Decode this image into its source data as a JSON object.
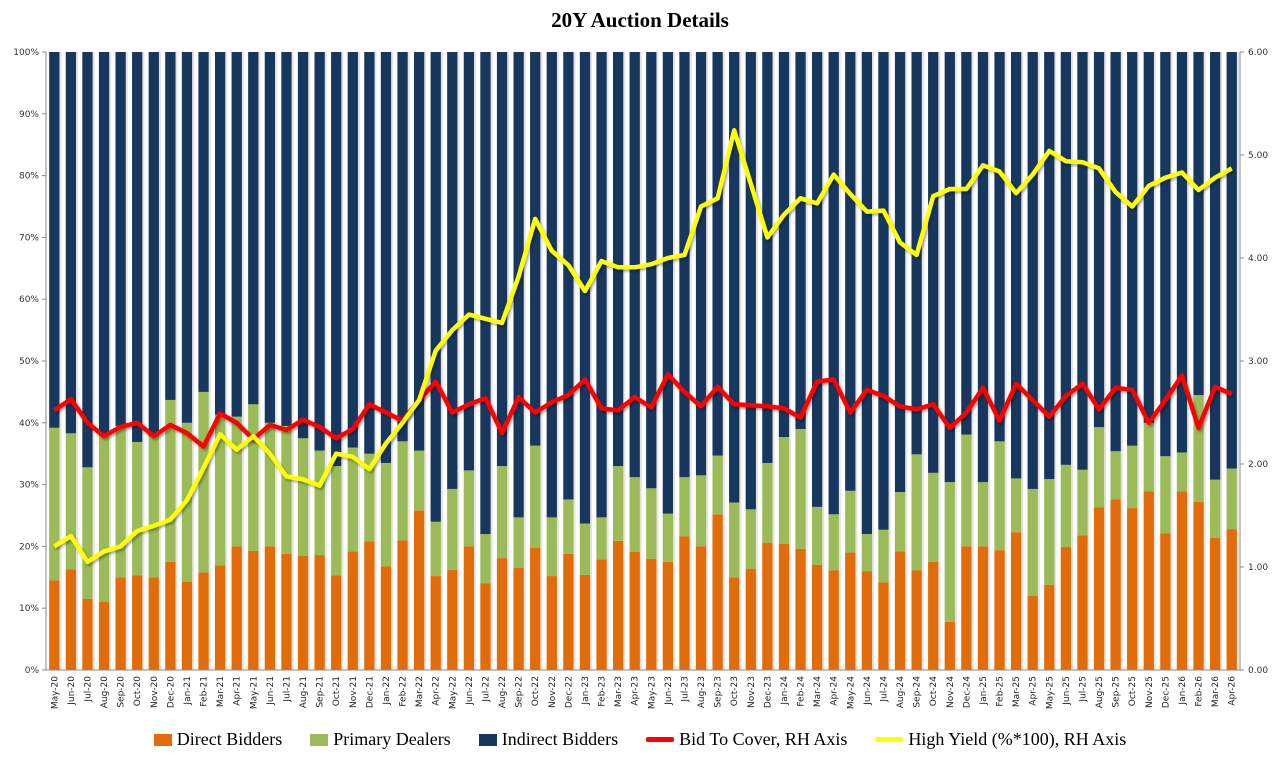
{
  "chart_data": {
    "type": "bar",
    "stacked": true,
    "title": "20Y Auction Details",
    "xlabel": "",
    "ylabel": "",
    "ylim": [
      0,
      100
    ],
    "y2lim": [
      0,
      6
    ],
    "left_ticks": [
      "0%",
      "10%",
      "20%",
      "30%",
      "40%",
      "50%",
      "60%",
      "70%",
      "80%",
      "90%",
      "100%"
    ],
    "right_ticks": [
      "0.00",
      "1.00",
      "2.00",
      "3.00",
      "4.00",
      "5.00",
      "6.00"
    ],
    "legend_position": "bottom",
    "categories": [
      "May-20",
      "Jun-20",
      "Jul-20",
      "Aug-20",
      "Sep-20",
      "Oct-20",
      "Nov-20",
      "Dec-20",
      "Jan-21",
      "Feb-21",
      "Mar-21",
      "Apr-21",
      "May-21",
      "Jun-21",
      "Jul-21",
      "Aug-21",
      "Sep-21",
      "Oct-21",
      "Nov-21",
      "Dec-21",
      "Jan-22",
      "Feb-22",
      "Mar-22",
      "Apr-22",
      "May-22",
      "Jun-22",
      "Jul-22",
      "Aug-22",
      "Sep-22",
      "Oct-22",
      "Nov-22",
      "Dec-22",
      "Jan-23",
      "Feb-23",
      "Mar-23",
      "Apr-23",
      "May-23",
      "Jun-23",
      "Jul-23",
      "Aug-23",
      "Sep-23",
      "Oct-23",
      "Nov-23",
      "Dec-23",
      "Jan-24",
      "Feb-24",
      "Mar-24",
      "Apr-24",
      "May-24",
      "Jun-24",
      "Jul-24",
      "Aug-24",
      "Sep-24",
      "Oct-24",
      "Nov-24",
      "Dec-24",
      "Jan-25",
      "Feb-25",
      "Mar-25",
      "Apr-25",
      "May-25",
      "Jun-25",
      "Jul-25",
      "Aug-25",
      "Sep-25",
      "Oct-25",
      "Nov-25",
      "Dec-25",
      "Jan-26",
      "Feb-26",
      "Mar-26",
      "Apr-26"
    ],
    "series": [
      {
        "name": "Direct Bidders",
        "axis": "left",
        "kind": "bar",
        "color": "#E36C0A",
        "values": [
          14.5,
          16.3,
          11.5,
          11,
          15,
          15.3,
          15,
          17.5,
          14.3,
          15.8,
          16.9,
          20,
          19.3,
          20,
          18.8,
          18.5,
          18.6,
          15.3,
          19.2,
          20.8,
          16.8,
          21,
          25.8,
          15.2,
          16.2,
          20,
          14,
          18.1,
          16.5,
          19.8,
          15.2,
          18.8,
          15.4,
          17.9,
          20.9,
          19.1,
          18,
          17.5,
          21.6,
          20,
          25.2,
          15,
          16.4,
          20.6,
          20.4,
          19.6,
          17,
          16.1,
          19,
          16,
          14.2,
          19.2,
          16.1,
          17.5,
          7.8,
          20,
          20,
          19.4,
          22.3,
          12,
          13.8,
          19.9,
          21.8,
          26.3,
          27.6,
          26.2,
          28.9,
          22.1,
          28.9,
          27.2,
          21.4,
          22.8
        ]
      },
      {
        "name": "Primary Dealers",
        "axis": "left",
        "kind": "bar",
        "color": "#9BBB59",
        "values": [
          24.7,
          22,
          21.3,
          26.9,
          24.5,
          21.6,
          22.8,
          26.2,
          25.7,
          29.2,
          24.4,
          21,
          23.7,
          20,
          20.7,
          19,
          16.9,
          17.7,
          16.8,
          14.2,
          16.7,
          16,
          9.7,
          8.8,
          13.1,
          12.3,
          8,
          14.9,
          8.2,
          16.5,
          9.5,
          8.8,
          8.3,
          6.8,
          12.1,
          12.1,
          11.4,
          7.8,
          9.6,
          11.5,
          9.5,
          12.1,
          9.6,
          12.9,
          17.3,
          19.4,
          9.4,
          9.1,
          10,
          6,
          8.5,
          9.6,
          18.8,
          14.4,
          22.6,
          18.1,
          10.4,
          17.6,
          8.7,
          17.3,
          17.1,
          13.3,
          10.6,
          13,
          7.8,
          10.1,
          11.1,
          12.5,
          6.3,
          17.3,
          9.4,
          9.8
        ]
      },
      {
        "name": "Indirect Bidders",
        "axis": "left",
        "kind": "bar",
        "color": "#17375E",
        "values": [
          60.8,
          61.7,
          67.2,
          62.1,
          60.5,
          63.1,
          62.2,
          56.3,
          60,
          55,
          58.7,
          59,
          57,
          60,
          60.5,
          62.5,
          64.5,
          67,
          64,
          65,
          66.5,
          63,
          64.5,
          76,
          70.7,
          67.7,
          78,
          67,
          75.3,
          63.7,
          75.3,
          72.4,
          76.3,
          75.3,
          67,
          68.8,
          70.6,
          74.7,
          68.8,
          68.5,
          65.3,
          72.9,
          74,
          66.5,
          62.3,
          61,
          73.6,
          74.8,
          71,
          78,
          77.3,
          71.2,
          65.1,
          68.1,
          69.6,
          61.9,
          69.6,
          63,
          69,
          70.7,
          69.1,
          66.8,
          67.6,
          60.7,
          64.6,
          63.7,
          60,
          65.4,
          64.8,
          55.5,
          69.2,
          67.4
        ]
      },
      {
        "name": "Bid To Cover, RH Axis",
        "axis": "right",
        "kind": "line",
        "color": "#FF0000",
        "values": [
          2.52,
          2.63,
          2.4,
          2.27,
          2.36,
          2.4,
          2.27,
          2.38,
          2.3,
          2.17,
          2.49,
          2.4,
          2.24,
          2.38,
          2.33,
          2.43,
          2.36,
          2.25,
          2.34,
          2.58,
          2.5,
          2.42,
          2.62,
          2.8,
          2.5,
          2.58,
          2.64,
          2.3,
          2.65,
          2.5,
          2.6,
          2.67,
          2.82,
          2.54,
          2.52,
          2.65,
          2.55,
          2.87,
          2.7,
          2.56,
          2.75,
          2.58,
          2.57,
          2.56,
          2.54,
          2.45,
          2.8,
          2.82,
          2.5,
          2.72,
          2.66,
          2.56,
          2.53,
          2.58,
          2.35,
          2.5,
          2.74,
          2.42,
          2.78,
          2.62,
          2.46,
          2.66,
          2.78,
          2.53,
          2.74,
          2.72,
          2.4,
          2.62,
          2.86,
          2.35,
          2.75,
          2.68
        ]
      },
      {
        "name": "High Yield (%*100), RH Axis",
        "axis": "right",
        "kind": "line",
        "color": "#FFFF00",
        "values": [
          1.2,
          1.3,
          1.05,
          1.15,
          1.2,
          1.35,
          1.4,
          1.46,
          1.65,
          1.96,
          2.29,
          2.14,
          2.27,
          2.1,
          1.88,
          1.85,
          1.79,
          2.1,
          2.07,
          1.95,
          2.2,
          2.4,
          2.62,
          3.1,
          3.3,
          3.45,
          3.41,
          3.37,
          3.82,
          4.38,
          4.07,
          3.93,
          3.68,
          3.97,
          3.91,
          3.91,
          3.94,
          4.0,
          4.03,
          4.5,
          4.58,
          5.24,
          4.72,
          4.2,
          4.42,
          4.58,
          4.53,
          4.81,
          4.62,
          4.45,
          4.46,
          4.15,
          4.03,
          4.6,
          4.67,
          4.67,
          4.9,
          4.84,
          4.63,
          4.81,
          5.04,
          4.94,
          4.93,
          4.87,
          4.64,
          4.5,
          4.7,
          4.78,
          4.83,
          4.66,
          4.78,
          4.87
        ]
      }
    ]
  }
}
